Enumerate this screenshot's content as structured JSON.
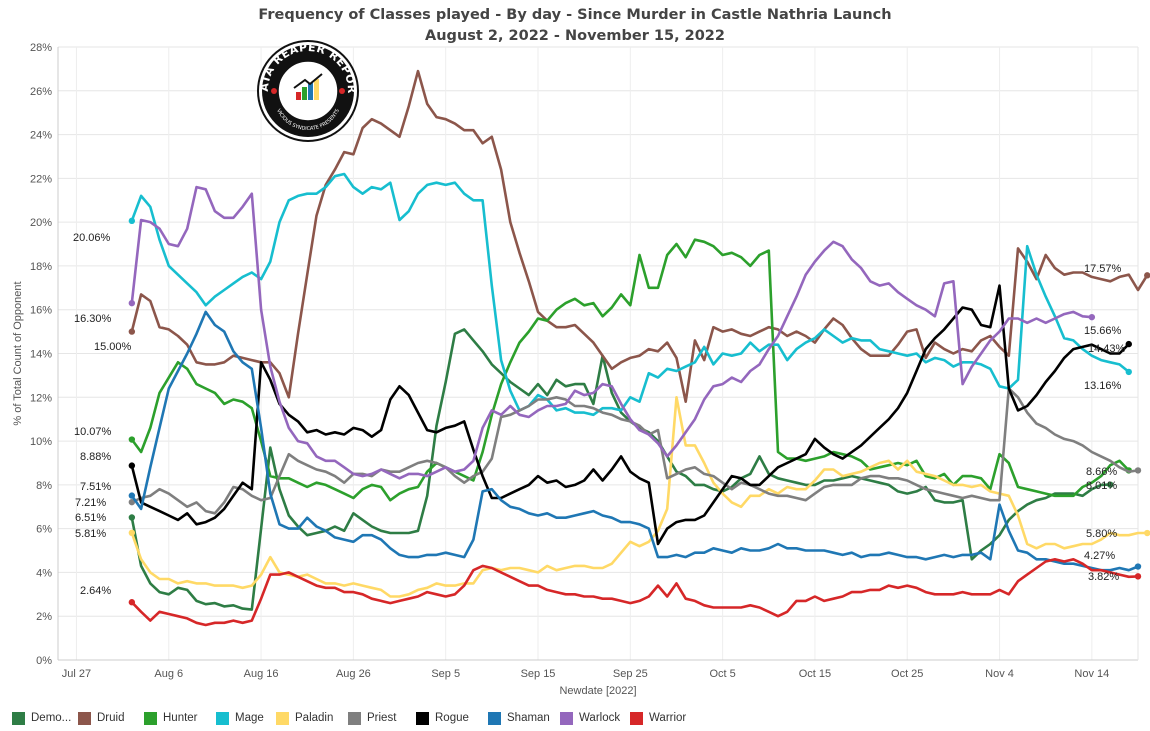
{
  "title": {
    "line1": "Frequency of Classes played - By day - Since Murder in Castle Nathria  Launch",
    "line2": "August 2, 2022 - November 15, 2022"
  },
  "logo": {
    "text_top": "DATA REAPER REPORT",
    "text_bottom": "VICIOUS SYNDICATE PRESENTS"
  },
  "chart_data": {
    "type": "line",
    "title": "Frequency of Classes played - By day - Since Murder in Castle Nathria  Launch",
    "subtitle": "August 2, 2022 - November 15, 2022",
    "xlabel": "Newdate [2022]",
    "ylabel": "% of Total Count of Opponent",
    "x_ticks": [
      "Jul 27",
      "Aug 6",
      "Aug 16",
      "Aug 26",
      "Sep 5",
      "Sep 15",
      "Sep 25",
      "Oct 5",
      "Oct 15",
      "Oct 25",
      "Nov 4",
      "Nov 14"
    ],
    "y_ticks": [
      "0%",
      "2%",
      "4%",
      "6%",
      "8%",
      "10%",
      "12%",
      "14%",
      "16%",
      "18%",
      "20%",
      "22%",
      "24%",
      "26%",
      "28%"
    ],
    "xlim": [
      "2022-07-25",
      "2022-11-19"
    ],
    "ylim": [
      0,
      28
    ],
    "grid": true,
    "legend": "bottom",
    "x_start": "2022-08-02",
    "series": [
      {
        "name": "Demo...",
        "color": "#2e7d45",
        "start_label": "6.51%",
        "end_label": "8.01%",
        "values": [
          6.51,
          4.3,
          3.5,
          3.1,
          3.0,
          3.3,
          3.2,
          2.7,
          2.55,
          2.6,
          2.45,
          2.5,
          2.35,
          2.3,
          6.0,
          9.7,
          7.8,
          6.6,
          6.1,
          5.7,
          5.8,
          5.9,
          6.1,
          5.9,
          6.7,
          6.4,
          6.1,
          5.9,
          5.8,
          5.8,
          5.8,
          5.9,
          7.5,
          10.7,
          12.7,
          14.9,
          15.1,
          14.6,
          14.1,
          13.5,
          13.1,
          12.7,
          12.4,
          12.1,
          12.6,
          12.1,
          12.8,
          12.5,
          12.6,
          12.6,
          11.7,
          13.9,
          12.2,
          11.3,
          10.9,
          10.6,
          10.4,
          10.0,
          9.3,
          8.6,
          8.4,
          8.0,
          8.0,
          7.8,
          7.7,
          7.9,
          8.3,
          8.5,
          9.3,
          8.5,
          8.3,
          8.2,
          8.1,
          8.0,
          8.0,
          8.2,
          8.2,
          8.3,
          8.4,
          8.3,
          8.2,
          8.1,
          8.0,
          7.7,
          7.6,
          7.7,
          7.9,
          7.3,
          7.2,
          7.2,
          7.3,
          4.6,
          5.0,
          5.3,
          5.7,
          6.4,
          6.8,
          7.1,
          7.3,
          7.4,
          7.6,
          7.6,
          7.6,
          7.5,
          7.8,
          8.0,
          8.01
        ]
      },
      {
        "name": "Druid",
        "color": "#8c564b",
        "start_label": "15.00%",
        "end_label": "17.57%",
        "values": [
          15.0,
          16.7,
          16.4,
          15.2,
          15.1,
          14.8,
          14.4,
          13.6,
          13.5,
          13.5,
          13.6,
          13.9,
          13.8,
          13.7,
          13.6,
          13.6,
          13.1,
          12.0,
          14.9,
          17.6,
          20.3,
          21.7,
          22.4,
          23.2,
          23.1,
          24.3,
          24.7,
          24.5,
          24.2,
          23.9,
          25.3,
          26.9,
          25.4,
          24.8,
          24.7,
          24.5,
          24.2,
          24.2,
          23.6,
          23.9,
          22.4,
          20.0,
          18.6,
          17.3,
          15.9,
          15.5,
          15.2,
          15.2,
          15.3,
          14.9,
          14.5,
          13.9,
          13.3,
          13.6,
          13.8,
          13.9,
          14.2,
          14.1,
          14.5,
          13.8,
          11.8,
          14.6,
          13.7,
          15.2,
          15.0,
          15.1,
          14.9,
          14.8,
          15.0,
          15.2,
          15.1,
          14.8,
          15.0,
          14.8,
          14.5,
          15.1,
          15.6,
          15.3,
          14.7,
          14.2,
          13.9,
          13.9,
          13.9,
          14.4,
          15.0,
          15.1,
          13.8,
          14.5,
          14.2,
          14.0,
          14.2,
          14.1,
          14.6,
          14.8,
          14.3,
          13.9,
          18.8,
          18.2,
          17.4,
          18.5,
          17.9,
          17.6,
          17.7,
          17.7,
          17.5,
          17.4,
          17.3,
          17.5,
          17.6,
          16.9,
          17.57
        ]
      },
      {
        "name": "Hunter",
        "color": "#2ca02c",
        "start_label": "10.07%",
        "end_label": "8.66%",
        "values": [
          10.07,
          9.5,
          10.6,
          12.2,
          12.9,
          13.6,
          13.3,
          12.6,
          12.4,
          12.2,
          11.7,
          11.9,
          11.8,
          11.5,
          10.0,
          8.4,
          8.3,
          8.3,
          8.1,
          7.9,
          8.1,
          8.0,
          7.8,
          7.6,
          7.4,
          7.8,
          8.0,
          7.9,
          7.3,
          7.6,
          7.8,
          7.9,
          8.6,
          9.0,
          8.8,
          8.6,
          8.4,
          8.2,
          9.5,
          11.2,
          12.6,
          13.6,
          14.5,
          15.0,
          15.6,
          15.5,
          16.0,
          16.3,
          16.5,
          16.2,
          16.3,
          15.7,
          16.1,
          16.7,
          16.2,
          18.5,
          17.0,
          17.0,
          18.5,
          19.0,
          18.4,
          19.2,
          19.1,
          18.9,
          18.5,
          18.6,
          18.4,
          18.0,
          18.5,
          18.7,
          9.5,
          9.2,
          9.2,
          9.1,
          9.2,
          9.3,
          9.5,
          9.4,
          9.3,
          9.1,
          8.7,
          8.8,
          8.9,
          9.0,
          8.9,
          9.1,
          8.4,
          8.3,
          8.5,
          8.0,
          8.4,
          8.4,
          8.3,
          7.8,
          9.4,
          9.0,
          7.9,
          7.8,
          7.7,
          7.6,
          7.5,
          7.5,
          7.5,
          7.9,
          8.1,
          8.4,
          8.9,
          9.1,
          8.66
        ]
      },
      {
        "name": "Mage",
        "color": "#17becf",
        "start_label": "20.06%",
        "end_label": "13.16%",
        "values": [
          20.06,
          21.2,
          20.7,
          19.2,
          18.0,
          17.6,
          17.2,
          16.8,
          16.2,
          16.6,
          16.9,
          17.2,
          17.5,
          17.7,
          17.4,
          18.2,
          20.0,
          21.0,
          21.2,
          21.3,
          21.3,
          21.6,
          22.1,
          22.2,
          21.6,
          21.3,
          21.6,
          21.5,
          21.8,
          20.1,
          20.5,
          21.3,
          21.7,
          21.8,
          21.7,
          21.8,
          21.3,
          21.0,
          21.0,
          17.1,
          13.7,
          12.3,
          11.4,
          11.6,
          12.1,
          11.9,
          11.4,
          11.5,
          11.3,
          11.3,
          11.2,
          11.5,
          11.5,
          11.4,
          12.0,
          11.8,
          13.1,
          12.9,
          13.3,
          13.2,
          13.4,
          13.6,
          14.3,
          13.5,
          14.0,
          13.9,
          14.0,
          14.5,
          14.1,
          14.4,
          14.4,
          13.7,
          14.2,
          14.5,
          14.7,
          15.1,
          14.8,
          14.5,
          14.7,
          14.6,
          14.6,
          14.2,
          14.1,
          14.0,
          13.9,
          14.0,
          13.6,
          13.8,
          13.7,
          13.4,
          13.6,
          13.6,
          13.5,
          13.3,
          12.5,
          12.4,
          12.8,
          18.9,
          17.6,
          16.6,
          15.7,
          14.7,
          14.6,
          14.2,
          13.9,
          13.7,
          13.6,
          13.5,
          13.16
        ]
      },
      {
        "name": "Paladin",
        "color": "#ffd966",
        "start_label": "5.81%",
        "end_label": "5.80%",
        "values": [
          5.81,
          4.6,
          4.0,
          3.7,
          3.7,
          3.5,
          3.6,
          3.5,
          3.5,
          3.4,
          3.4,
          3.4,
          3.3,
          3.4,
          3.9,
          4.7,
          4.0,
          3.9,
          3.8,
          3.9,
          3.7,
          3.5,
          3.5,
          3.4,
          3.5,
          3.4,
          3.3,
          3.2,
          2.9,
          2.9,
          3.0,
          3.2,
          3.3,
          3.5,
          3.4,
          3.4,
          3.5,
          3.5,
          4.1,
          4.2,
          4.1,
          4.2,
          4.2,
          4.1,
          4.0,
          4.3,
          4.1,
          4.2,
          4.3,
          4.3,
          4.2,
          4.2,
          4.4,
          4.9,
          5.4,
          5.2,
          5.4,
          5.9,
          6.9,
          12.0,
          9.8,
          9.8,
          9.0,
          8.1,
          7.6,
          7.2,
          7.0,
          7.5,
          7.5,
          7.8,
          7.6,
          7.9,
          7.8,
          7.8,
          8.2,
          8.7,
          8.7,
          8.4,
          8.5,
          8.6,
          8.8,
          9.0,
          9.1,
          8.7,
          9.1,
          8.6,
          8.5,
          8.4,
          8.2,
          8.0,
          8.0,
          7.9,
          8.0,
          7.7,
          7.6,
          7.5,
          6.6,
          5.3,
          5.1,
          5.3,
          5.3,
          5.1,
          5.2,
          5.3,
          5.3,
          5.5,
          5.8,
          5.7,
          5.7,
          5.8,
          5.8
        ]
      },
      {
        "name": "Priest",
        "color": "#7f7f7f",
        "start_label": "7.21%",
        "end_label": "8.66%",
        "values": [
          7.21,
          7.4,
          7.5,
          7.8,
          7.6,
          7.3,
          7.0,
          7.2,
          6.8,
          6.7,
          7.2,
          7.9,
          7.8,
          7.5,
          7.3,
          7.4,
          8.4,
          9.4,
          9.1,
          8.9,
          8.7,
          8.6,
          8.4,
          8.1,
          8.5,
          8.5,
          8.4,
          8.7,
          8.6,
          8.6,
          8.8,
          9.0,
          9.1,
          9.0,
          8.8,
          8.4,
          8.1,
          8.4,
          8.6,
          9.2,
          11.1,
          11.2,
          11.4,
          11.6,
          11.9,
          11.9,
          12.0,
          11.9,
          11.6,
          11.6,
          11.5,
          11.3,
          11.2,
          11.0,
          10.9,
          10.7,
          10.3,
          10.5,
          8.3,
          8.5,
          8.7,
          8.8,
          8.5,
          8.4,
          8.1,
          7.8,
          8.1,
          8.0,
          7.8,
          7.6,
          7.5,
          7.5,
          7.4,
          7.3,
          7.6,
          7.9,
          8.0,
          8.0,
          8.0,
          8.3,
          8.4,
          8.4,
          8.3,
          8.3,
          8.2,
          8.0,
          7.8,
          7.7,
          7.6,
          7.5,
          7.4,
          7.5,
          7.4,
          7.3,
          7.3,
          12.4,
          12.0,
          11.3,
          10.8,
          10.6,
          10.3,
          10.1,
          10.0,
          9.8,
          9.5,
          9.3,
          9.1,
          8.8,
          8.6,
          8.66
        ]
      },
      {
        "name": "Rogue",
        "color": "#000000",
        "start_label": "8.88%",
        "end_label": "14.43%",
        "values": [
          8.88,
          7.2,
          7.0,
          6.8,
          6.6,
          6.4,
          6.7,
          6.2,
          6.3,
          6.5,
          6.9,
          7.5,
          8.1,
          7.8,
          13.6,
          12.8,
          11.7,
          11.2,
          10.9,
          10.4,
          10.5,
          10.3,
          10.4,
          10.3,
          10.6,
          10.5,
          10.2,
          10.5,
          11.9,
          12.5,
          12.1,
          11.3,
          10.5,
          10.4,
          10.6,
          10.7,
          10.9,
          9.6,
          8.4,
          7.4,
          7.4,
          7.6,
          7.8,
          8.0,
          8.4,
          8.1,
          8.2,
          7.9,
          8.0,
          8.2,
          8.7,
          8.2,
          8.7,
          9.3,
          8.6,
          8.3,
          8.1,
          5.3,
          6.0,
          6.3,
          6.4,
          6.4,
          6.6,
          7.2,
          7.8,
          8.4,
          8.3,
          8.0,
          8.0,
          8.4,
          8.8,
          9.0,
          9.2,
          9.4,
          10.1,
          9.7,
          9.4,
          9.2,
          9.5,
          9.8,
          10.2,
          10.6,
          11.0,
          11.5,
          12.2,
          13.2,
          14.2,
          14.7,
          15.1,
          15.6,
          16.1,
          16.0,
          15.3,
          15.2,
          17.1,
          12.4,
          11.4,
          11.6,
          12.1,
          12.7,
          13.2,
          13.8,
          14.2,
          14.3,
          14.4,
          14.2,
          14.0,
          14.0,
          14.43
        ]
      },
      {
        "name": "Shaman",
        "color": "#1f77b4",
        "start_label": "7.51%",
        "end_label": "4.27%",
        "values": [
          7.51,
          6.9,
          8.8,
          10.6,
          12.4,
          13.2,
          14.0,
          14.9,
          15.9,
          15.3,
          15.0,
          14.1,
          13.6,
          13.3,
          10.6,
          7.6,
          6.2,
          6.0,
          6.0,
          6.5,
          6.1,
          5.9,
          5.6,
          5.5,
          5.4,
          5.7,
          5.7,
          5.5,
          5.1,
          4.8,
          4.7,
          4.7,
          4.8,
          4.8,
          4.9,
          4.8,
          4.7,
          5.5,
          7.7,
          7.8,
          7.3,
          7.0,
          6.9,
          6.7,
          6.6,
          6.7,
          6.5,
          6.5,
          6.6,
          6.7,
          6.8,
          6.6,
          6.5,
          6.3,
          6.3,
          6.2,
          6.0,
          4.7,
          4.7,
          4.8,
          4.7,
          4.9,
          4.9,
          5.1,
          5.0,
          4.9,
          5.1,
          5.0,
          5.0,
          5.1,
          5.3,
          5.1,
          5.1,
          5.0,
          5.0,
          5.0,
          4.9,
          4.8,
          4.9,
          4.7,
          4.8,
          4.8,
          4.9,
          4.8,
          4.7,
          4.7,
          4.6,
          4.7,
          4.8,
          4.7,
          4.8,
          4.8,
          4.9,
          4.6,
          7.1,
          5.9,
          5.0,
          4.9,
          4.6,
          4.6,
          4.5,
          4.4,
          4.4,
          4.3,
          4.2,
          4.1,
          4.1,
          4.2,
          4.1,
          4.27
        ]
      },
      {
        "name": "Warlock",
        "color": "#9467bd",
        "start_label": "16.30%",
        "end_label": "15.66%",
        "values": [
          16.3,
          20.1,
          20.0,
          19.7,
          19.0,
          18.9,
          19.7,
          21.6,
          21.5,
          20.5,
          20.2,
          20.2,
          20.7,
          21.3,
          16.0,
          13.4,
          11.8,
          10.6,
          10.0,
          9.9,
          9.3,
          9.1,
          9.1,
          8.8,
          8.5,
          8.4,
          8.5,
          8.7,
          8.5,
          8.3,
          8.5,
          8.5,
          8.4,
          8.6,
          8.8,
          8.6,
          8.7,
          9.1,
          10.6,
          11.4,
          11.2,
          11.6,
          11.2,
          11.1,
          11.4,
          11.6,
          11.6,
          11.7,
          12.3,
          12.1,
          12.2,
          12.6,
          12.5,
          11.7,
          11.0,
          10.5,
          10.3,
          9.9,
          9.3,
          9.8,
          10.4,
          11.0,
          11.9,
          12.5,
          12.6,
          12.9,
          12.7,
          13.2,
          13.5,
          14.2,
          14.8,
          15.7,
          16.6,
          17.6,
          18.2,
          18.7,
          19.1,
          18.9,
          18.3,
          17.9,
          17.3,
          17.1,
          17.2,
          16.8,
          16.5,
          16.2,
          16.0,
          15.7,
          17.2,
          17.3,
          12.6,
          13.4,
          14.0,
          14.6,
          15.0,
          15.6,
          15.6,
          15.4,
          15.6,
          15.4,
          15.6,
          15.8,
          15.9,
          15.7,
          15.66
        ]
      },
      {
        "name": "Warrior",
        "color": "#d62728",
        "start_label": "2.64%",
        "end_label": "3.82%",
        "values": [
          2.64,
          2.2,
          1.8,
          2.2,
          2.1,
          2.0,
          1.9,
          1.7,
          1.6,
          1.7,
          1.7,
          1.8,
          1.7,
          1.8,
          2.8,
          3.9,
          3.9,
          4.0,
          3.8,
          3.6,
          3.4,
          3.3,
          3.3,
          3.1,
          3.1,
          3.0,
          2.8,
          2.7,
          2.6,
          2.7,
          2.8,
          2.9,
          3.1,
          3.0,
          2.9,
          3.0,
          3.4,
          4.1,
          4.3,
          4.2,
          4.0,
          3.8,
          3.6,
          3.4,
          3.4,
          3.2,
          3.1,
          3.0,
          3.0,
          2.9,
          2.9,
          2.8,
          2.8,
          2.7,
          2.6,
          2.7,
          2.9,
          3.4,
          2.9,
          3.5,
          2.8,
          2.7,
          2.5,
          2.4,
          2.4,
          2.4,
          2.4,
          2.5,
          2.4,
          2.2,
          2.0,
          2.2,
          2.7,
          2.7,
          2.9,
          2.7,
          2.8,
          2.9,
          3.1,
          3.1,
          3.2,
          3.2,
          3.4,
          3.3,
          3.4,
          3.3,
          3.1,
          3.0,
          3.0,
          3.0,
          3.1,
          3.0,
          3.0,
          3.0,
          3.2,
          3.0,
          3.6,
          3.9,
          4.2,
          4.5,
          4.6,
          4.5,
          4.6,
          4.4,
          4.1,
          4.1,
          4.0,
          3.9,
          3.8,
          3.82
        ]
      }
    ]
  }
}
